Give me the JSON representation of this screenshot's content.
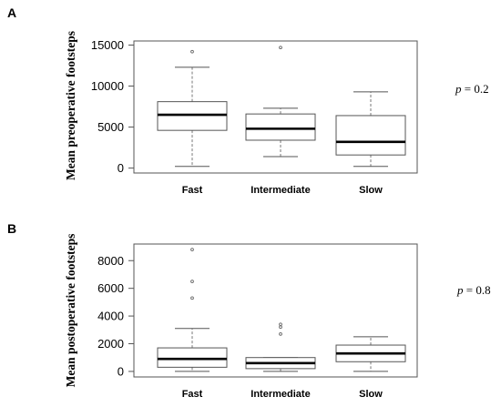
{
  "chart_data": [
    {
      "type": "box",
      "panel_label": "A",
      "ylabel": "Mean preoperative footsteps",
      "yticks": [
        0,
        5000,
        10000,
        15000
      ],
      "ytick_labels": [
        "0",
        "5000",
        "10000",
        "15000"
      ],
      "ylim": [
        -600,
        15500
      ],
      "categories": [
        "Fast",
        "Intermediate",
        "Slow"
      ],
      "boxes": [
        {
          "q1": 4600,
          "median": 6500,
          "q3": 8100,
          "whisker_low": 200,
          "whisker_high": 12300,
          "outliers": [
            14200
          ]
        },
        {
          "q1": 3400,
          "median": 4800,
          "q3": 6600,
          "whisker_low": 1400,
          "whisker_high": 7300,
          "outliers": [
            14700
          ]
        },
        {
          "q1": 1600,
          "median": 3200,
          "q3": 6400,
          "whisker_low": 200,
          "whisker_high": 9300,
          "outliers": []
        }
      ],
      "p_label": "p",
      "p_rest": " = 0.2"
    },
    {
      "type": "box",
      "panel_label": "B",
      "ylabel": "Mean postoperative footsteps",
      "yticks": [
        0,
        2000,
        4000,
        6000,
        8000
      ],
      "ytick_labels": [
        "0",
        "2000",
        "4000",
        "6000",
        "8000"
      ],
      "ylim": [
        -400,
        9200
      ],
      "categories": [
        "Fast",
        "Intermediate",
        "Slow"
      ],
      "boxes": [
        {
          "q1": 300,
          "median": 900,
          "q3": 1700,
          "whisker_low": 0,
          "whisker_high": 3100,
          "outliers": [
            5300,
            6500,
            8800
          ]
        },
        {
          "q1": 200,
          "median": 600,
          "q3": 1000,
          "whisker_low": 0,
          "whisker_high": 1000,
          "outliers": [
            2700,
            3200,
            3400
          ]
        },
        {
          "q1": 700,
          "median": 1300,
          "q3": 1900,
          "whisker_low": 0,
          "whisker_high": 2500,
          "outliers": []
        }
      ],
      "p_label": "p",
      "p_rest": " = 0.8"
    }
  ]
}
